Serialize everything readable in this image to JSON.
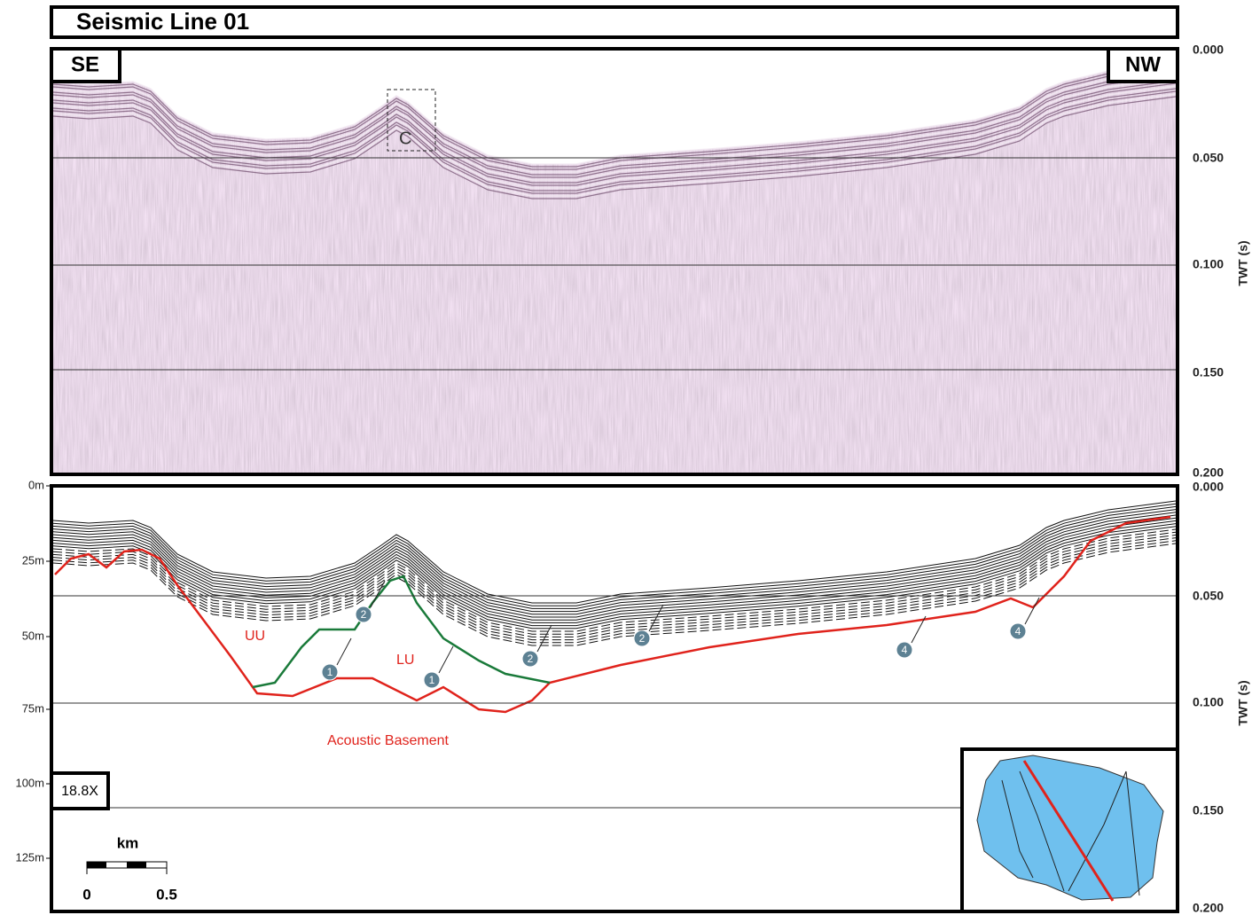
{
  "title": "Seismic Line 01",
  "top_panel": {
    "left_label": "SE",
    "right_label": "NW",
    "feature_label": "C",
    "twt_axis": {
      "title": "TWT (s)",
      "ticks": [
        "0.000",
        "0.050",
        "0.100",
        "0.150",
        "0.200"
      ]
    }
  },
  "bottom_panel": {
    "depth_axis": {
      "ticks": [
        "0m",
        "25m",
        "50m",
        "75m",
        "100m",
        "125m"
      ]
    },
    "twt_axis": {
      "title": "TWT (s)",
      "ticks": [
        "0.000",
        "0.050",
        "0.100",
        "0.150",
        "0.200"
      ]
    },
    "unit_labels": [
      "UU",
      "LU",
      "Acoustic Basement"
    ],
    "markers": [
      "1",
      "2",
      "1",
      "2",
      "2",
      "4",
      "4"
    ],
    "exaggeration": "18.8X",
    "scale_bar": {
      "unit": "km",
      "labels": [
        "0",
        "0.5"
      ]
    }
  }
}
